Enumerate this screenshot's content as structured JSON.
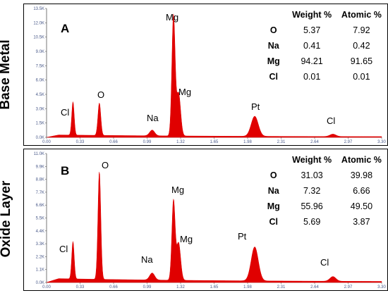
{
  "panels": [
    {
      "side_label": "Base Metal",
      "letter": "A",
      "yticks": [
        "0.0K",
        "1.5K",
        "3.0K",
        "4.5K",
        "6.0K",
        "7.5K",
        "9.0K",
        "10.5K",
        "12.0K",
        "13.5K"
      ],
      "table": {
        "headers": [
          "",
          "Weight %",
          "Atomic %"
        ],
        "rows": [
          {
            "el": "O",
            "w": "5.37",
            "a": "7.92"
          },
          {
            "el": "Na",
            "w": "0.41",
            "a": "0.42"
          },
          {
            "el": "Mg",
            "w": "94.21",
            "a": "91.65"
          },
          {
            "el": "Cl",
            "w": "0.01",
            "a": "0.01"
          }
        ]
      },
      "labels": {
        "cl1": "Cl",
        "o": "O",
        "na": "Na",
        "mg1": "Mg",
        "mg2": "Mg",
        "pt": "Pt",
        "cl2": "Cl"
      }
    },
    {
      "side_label": "Oxide  Layer",
      "letter": "B",
      "yticks": [
        "0.0K",
        "1.1K",
        "2.2K",
        "3.3K",
        "4.4K",
        "5.5K",
        "6.6K",
        "7.7K",
        "8.8K",
        "9.9K",
        "11.0K"
      ],
      "table": {
        "headers": [
          "",
          "Weight %",
          "Atomic %"
        ],
        "rows": [
          {
            "el": "O",
            "w": "31.03",
            "a": "39.98"
          },
          {
            "el": "Na",
            "w": "7.32",
            "a": "6.66"
          },
          {
            "el": "Mg",
            "w": "55.96",
            "a": "49.50"
          },
          {
            "el": "Cl",
            "w": "5.69",
            "a": "3.87"
          }
        ]
      },
      "labels": {
        "cl1": "Cl",
        "o": "O",
        "na": "Na",
        "mg1": "Mg",
        "mg2": "Mg",
        "pt": "Pt",
        "cl2": "Cl"
      }
    }
  ],
  "xticks": [
    "0.00",
    "0.33",
    "0.66",
    "0.99",
    "1.32",
    "1.65",
    "1.98",
    "2.31",
    "2.64",
    "2.97",
    "3.30"
  ],
  "chart_data": [
    {
      "type": "area",
      "title": "A",
      "ylabel": "",
      "xlabel": "",
      "xlim": [
        0,
        3.3
      ],
      "ylim": [
        0,
        13.5
      ],
      "color": "#e00000",
      "peaks": [
        {
          "x": 0.26,
          "height": 3.5,
          "width": 0.012
        },
        {
          "x": 0.52,
          "height": 3.4,
          "width": 0.014
        },
        {
          "x": 1.04,
          "height": 0.6,
          "width": 0.025
        },
        {
          "x": 1.25,
          "height": 12.6,
          "width": 0.016
        },
        {
          "x": 1.3,
          "height": 4.5,
          "width": 0.02
        },
        {
          "x": 2.05,
          "height": 2.1,
          "width": 0.035
        },
        {
          "x": 2.82,
          "height": 0.25,
          "width": 0.03
        }
      ],
      "baseline": 0.22
    },
    {
      "type": "area",
      "title": "B",
      "ylabel": "",
      "xlabel": "",
      "xlim": [
        0,
        3.3
      ],
      "ylim": [
        0,
        11.0
      ],
      "color": "#e00000",
      "peaks": [
        {
          "x": 0.26,
          "height": 3.2,
          "width": 0.012
        },
        {
          "x": 0.52,
          "height": 9.2,
          "width": 0.014
        },
        {
          "x": 1.04,
          "height": 0.6,
          "width": 0.025
        },
        {
          "x": 1.25,
          "height": 6.8,
          "width": 0.016
        },
        {
          "x": 1.3,
          "height": 3.2,
          "width": 0.02
        },
        {
          "x": 2.05,
          "height": 2.9,
          "width": 0.035
        },
        {
          "x": 2.82,
          "height": 0.4,
          "width": 0.03
        }
      ],
      "baseline": 0.3
    }
  ]
}
